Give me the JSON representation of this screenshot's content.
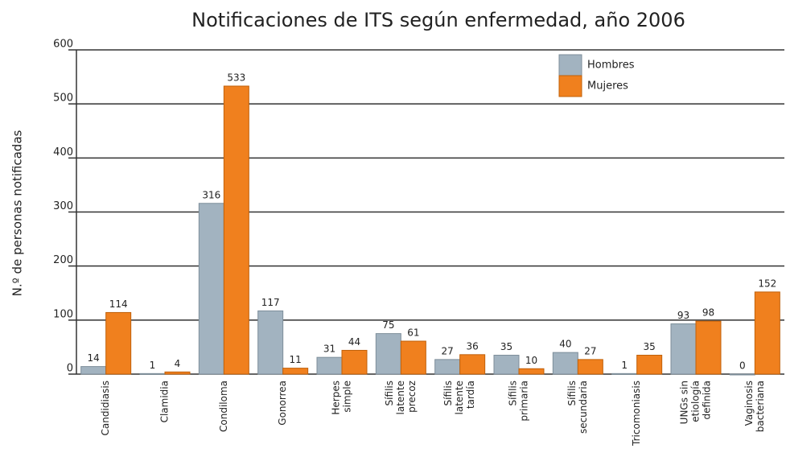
{
  "chart_data": {
    "type": "bar",
    "title": "Notificaciones de ITS según enfermedad, año 2006",
    "y_label": "N.º de personas notificadas",
    "categories": [
      [
        "Candidiasis"
      ],
      [
        "Clamidia"
      ],
      [
        "Condiloma"
      ],
      [
        "Gonorrea"
      ],
      [
        "Herpes",
        "simple"
      ],
      [
        "Sífilis",
        "latente",
        "precoz"
      ],
      [
        "Sífilis",
        "latente",
        "tardía"
      ],
      [
        "Sífilis",
        "primaria"
      ],
      [
        "Sífilis",
        "secundaria"
      ],
      [
        "Tricomoniasis"
      ],
      [
        "UNGs sin",
        "etiología",
        "definida"
      ],
      [
        "Vaginosis",
        "bacteriana"
      ]
    ],
    "series": [
      {
        "name": "Hombres",
        "color": "#a2b3c0",
        "values": [
          14,
          1,
          316,
          117,
          31,
          75,
          27,
          35,
          40,
          1,
          93,
          0
        ]
      },
      {
        "name": "Mujeres",
        "color": "#f0801e",
        "values": [
          114,
          4,
          533,
          11,
          44,
          61,
          36,
          10,
          27,
          35,
          98,
          152
        ]
      }
    ],
    "ylim": [
      0,
      600
    ],
    "yticks": [
      0,
      100,
      200,
      300,
      400,
      500,
      600
    ],
    "grid": true,
    "legend": "upper right"
  }
}
